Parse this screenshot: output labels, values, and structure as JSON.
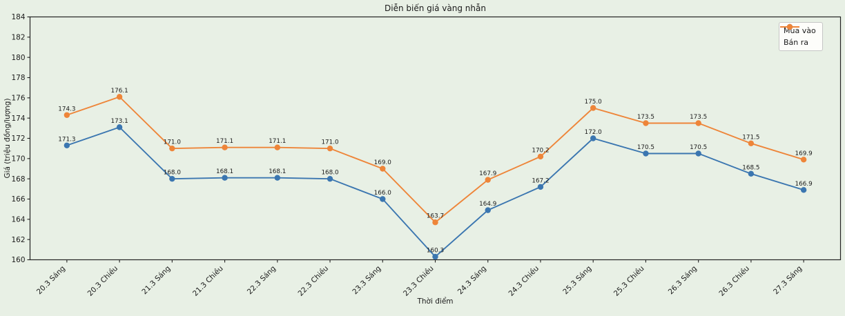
{
  "title": "Diễn biến giá vàng nhẫn",
  "colors": {
    "background": "#e8f0e5",
    "axis": "#222222",
    "text": "#1a1a1a",
    "legend_background": "#fdfdfa",
    "legend_border": "#c6c6c6",
    "buy_series": "#3b76b0",
    "sell_series": "#ee8539"
  },
  "chart_data": {
    "type": "line",
    "title": "Diễn biến giá vàng nhẫn",
    "xlabel": "Thời điểm",
    "ylabel": "Giá (triệu đồng/lượng)",
    "categories": [
      "20.3 Sáng",
      "20.3 Chiều",
      "21.3 Sáng",
      "21.3 Chiều",
      "22.3 Sáng",
      "22.3 Chiều",
      "23.3 Sáng",
      "23.3 Chiều",
      "24.3 Sáng",
      "24.3 Chiều",
      "25.3 Sáng",
      "25.3 Chiều",
      "26.3 Sáng",
      "26.3 Chiều",
      "27.3 Sáng"
    ],
    "series": [
      {
        "name": "Mua vào",
        "color": "#3b76b0",
        "values": [
          171.3,
          173.1,
          168.0,
          168.1,
          168.1,
          168.0,
          166.0,
          160.3,
          164.9,
          167.2,
          172.0,
          170.5,
          170.5,
          168.5,
          166.9
        ]
      },
      {
        "name": "Bán ra",
        "color": "#ee8539",
        "values": [
          174.3,
          176.1,
          171.0,
          171.1,
          171.1,
          171.0,
          169.0,
          163.7,
          167.9,
          170.2,
          175.0,
          173.5,
          173.5,
          171.5,
          169.9
        ]
      }
    ],
    "ylim": [
      160,
      184
    ],
    "ytick_step": 2,
    "yticks": [
      160,
      162,
      164,
      166,
      168,
      170,
      172,
      174,
      176,
      178,
      180,
      182,
      184
    ],
    "xtick_rotation": 45,
    "point_label_decimals": 1,
    "grid": false,
    "legend_position": "upper right"
  }
}
